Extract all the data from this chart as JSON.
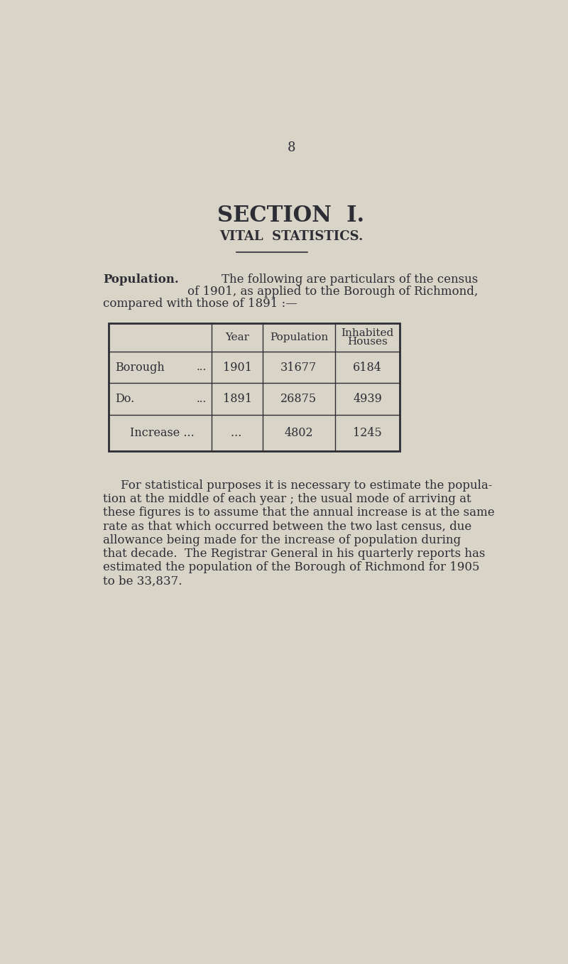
{
  "bg_color": "#d8d4c8",
  "text_color": "#2d2d35",
  "page_number": "8",
  "section_title": "SECTION  I.",
  "subtitle": "VITAL  STATISTICS.",
  "population_label": "Population.",
  "intro_text_line1": "The following are particulars of the census",
  "intro_text_line2": "of 1901, as applied to the Borough of Richmond,",
  "intro_text_line3": "compared with those of 1891 :—",
  "table_col_headers": [
    "Year",
    "Population",
    "Inhabited\nHouses"
  ],
  "row1_label": "Borough",
  "row1_dots": "...",
  "row1_year": "1901",
  "row1_pop": "31677",
  "row1_houses": "6184",
  "row2_label": "Do.",
  "row2_dots": "...",
  "row2_year": "1891",
  "row2_pop": "26875",
  "row2_houses": "4939",
  "row3_label": "Increase ...          ...",
  "row3_pop": "4802",
  "row3_houses": "1245",
  "para_lines": [
    "For statistical purposes it is necessary to estimate the popula-",
    "tion at the middle of each year ; the usual mode of arriving at",
    "these figures is to assume that the annual increase is at the same",
    "rate as that which occurred between the two last census, due",
    "allowance being made for the increase of population during",
    "that decade.  The Registrar General in his quarterly reports has",
    "estimated the population of the Borough of Richmond for 1905",
    "to be 33,837."
  ]
}
